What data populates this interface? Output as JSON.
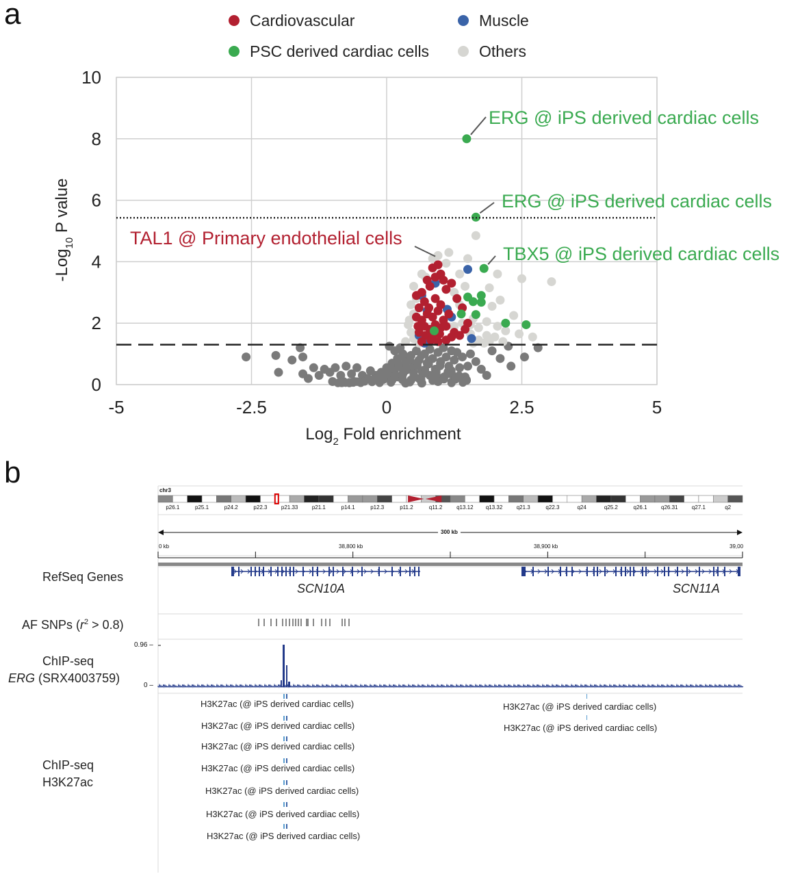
{
  "panels": {
    "a": "a",
    "b": "b"
  },
  "chart_data": {
    "type": "scatter",
    "title": "",
    "xlabel_main": "Log",
    "xlabel_sub": "2",
    "xlabel_rest": " Fold enrichment",
    "ylabel_main": "-Log",
    "ylabel_sub": "10",
    "ylabel_rest": " P value",
    "xlim": [
      -5,
      5
    ],
    "ylim": [
      0,
      10
    ],
    "xticks": [
      -5,
      -2.5,
      0,
      2.5,
      5
    ],
    "xtick_labels": [
      "-5",
      "-2.5",
      "0",
      "2.5",
      "5"
    ],
    "yticks": [
      0,
      2,
      4,
      6,
      8,
      10
    ],
    "ytick_labels": [
      "0",
      "2",
      "4",
      "6",
      "8",
      "10"
    ],
    "grid": true,
    "legend_position": "top",
    "thresholds": [
      {
        "style": "dotted",
        "y": 5.43
      },
      {
        "style": "dashed",
        "y": 1.3
      }
    ],
    "colors": {
      "Cardiovascular": "#b22030",
      "Muscle": "#3a63a8",
      "PSC derived cardiac cells": "#3aaa50",
      "Others": "#d6d6d2",
      "nonsig": "#7a7a7a"
    },
    "series": [
      {
        "name": "Cardiovascular",
        "color": "#b22030",
        "points": [
          [
            0.85,
            3.8
          ],
          [
            0.95,
            3.9
          ],
          [
            0.75,
            3.4
          ],
          [
            0.9,
            3.5
          ],
          [
            1.0,
            3.6
          ],
          [
            0.65,
            3.0
          ],
          [
            0.55,
            2.9
          ],
          [
            0.8,
            3.2
          ],
          [
            1.2,
            3.3
          ],
          [
            1.1,
            3.1
          ],
          [
            0.7,
            2.7
          ],
          [
            0.6,
            2.5
          ],
          [
            0.9,
            2.8
          ],
          [
            1.0,
            2.6
          ],
          [
            1.3,
            2.8
          ],
          [
            1.4,
            2.5
          ],
          [
            0.75,
            2.3
          ],
          [
            0.85,
            2.2
          ],
          [
            0.95,
            2.4
          ],
          [
            1.05,
            2.1
          ],
          [
            1.15,
            2.3
          ],
          [
            0.65,
            2.1
          ],
          [
            0.55,
            2.2
          ],
          [
            0.7,
            1.9
          ],
          [
            0.8,
            1.8
          ],
          [
            0.9,
            1.95
          ],
          [
            1.0,
            1.85
          ],
          [
            1.1,
            1.9
          ],
          [
            1.25,
            1.7
          ],
          [
            0.6,
            1.7
          ],
          [
            0.72,
            1.6
          ],
          [
            0.85,
            1.6
          ],
          [
            0.98,
            1.65
          ],
          [
            1.2,
            1.55
          ],
          [
            1.35,
            1.6
          ],
          [
            0.65,
            1.4
          ],
          [
            0.82,
            1.45
          ],
          [
            0.95,
            1.4
          ],
          [
            1.1,
            1.45
          ],
          [
            1.5,
            2.0
          ],
          [
            1.45,
            1.8
          ],
          [
            0.58,
            1.9
          ],
          [
            0.78,
            2.5
          ],
          [
            1.05,
            3.4
          ]
        ]
      },
      {
        "name": "Muscle",
        "color": "#3a63a8",
        "points": [
          [
            1.5,
            3.75
          ],
          [
            0.6,
            1.6
          ],
          [
            0.75,
            2.4
          ],
          [
            1.12,
            2.45
          ],
          [
            1.57,
            1.5
          ],
          [
            0.9,
            3.3
          ],
          [
            0.65,
            2.9
          ],
          [
            1.2,
            2.2
          ],
          [
            0.7,
            1.35
          ]
        ]
      },
      {
        "name": "PSC derived cardiac cells",
        "color": "#3aaa50",
        "points": [
          [
            1.48,
            8.0
          ],
          [
            1.65,
            5.45
          ],
          [
            1.8,
            3.78
          ],
          [
            1.5,
            2.85
          ],
          [
            1.75,
            2.9
          ],
          [
            1.6,
            2.7
          ],
          [
            1.75,
            2.68
          ],
          [
            1.65,
            2.28
          ],
          [
            1.38,
            2.3
          ],
          [
            2.2,
            2.0
          ],
          [
            2.58,
            1.95
          ],
          [
            0.88,
            1.75
          ]
        ]
      },
      {
        "name": "Others",
        "color": "#d6d6d2",
        "points": [
          [
            1.65,
            4.85
          ],
          [
            0.85,
            4.1
          ],
          [
            1.1,
            3.95
          ],
          [
            1.5,
            4.1
          ],
          [
            2.05,
            3.6
          ],
          [
            3.05,
            3.35
          ],
          [
            2.5,
            3.45
          ],
          [
            0.72,
            3.5
          ],
          [
            1.25,
            3.0
          ],
          [
            1.9,
            3.15
          ],
          [
            2.1,
            2.75
          ],
          [
            1.95,
            2.55
          ],
          [
            1.35,
            2.6
          ],
          [
            2.35,
            2.25
          ],
          [
            1.6,
            2.15
          ],
          [
            1.85,
            2.05
          ],
          [
            2.05,
            1.9
          ],
          [
            2.2,
            1.75
          ],
          [
            2.45,
            1.65
          ],
          [
            2.7,
            1.55
          ],
          [
            1.4,
            2.0
          ],
          [
            1.55,
            1.95
          ],
          [
            1.7,
            1.85
          ],
          [
            1.85,
            1.6
          ],
          [
            2.0,
            1.55
          ],
          [
            1.25,
            1.9
          ],
          [
            1.55,
            1.65
          ],
          [
            1.7,
            1.45
          ],
          [
            1.9,
            1.4
          ],
          [
            0.5,
            1.5
          ],
          [
            0.45,
            1.7
          ],
          [
            0.4,
            1.95
          ],
          [
            0.5,
            2.3
          ],
          [
            0.45,
            2.6
          ],
          [
            0.55,
            2.8
          ],
          [
            0.5,
            3.2
          ],
          [
            0.65,
            3.6
          ],
          [
            0.95,
            4.2
          ],
          [
            1.15,
            4.3
          ],
          [
            1.35,
            3.6
          ],
          [
            0.6,
            1.35
          ],
          [
            0.35,
            1.4
          ],
          [
            1.6,
            1.35
          ],
          [
            1.8,
            1.35
          ],
          [
            2.15,
            1.4
          ],
          [
            0.42,
            2.1
          ],
          [
            1.45,
            3.2
          ]
        ]
      }
    ],
    "nonsig_points": [
      [
        -2.6,
        0.9
      ],
      [
        -2.05,
        0.95
      ],
      [
        -2.0,
        0.4
      ],
      [
        -1.75,
        0.8
      ],
      [
        -1.6,
        1.2
      ],
      [
        -1.55,
        0.9
      ],
      [
        -1.55,
        0.35
      ],
      [
        -1.35,
        0.55
      ],
      [
        -1.25,
        0.3
      ],
      [
        -1.45,
        0.2
      ],
      [
        -1.15,
        0.5
      ],
      [
        -1.05,
        0.4
      ],
      [
        -0.95,
        0.55
      ],
      [
        -0.85,
        0.3
      ],
      [
        -0.75,
        0.6
      ],
      [
        -0.65,
        0.35
      ],
      [
        -0.55,
        0.55
      ],
      [
        -0.45,
        0.3
      ],
      [
        -0.35,
        0.2
      ],
      [
        -0.3,
        0.45
      ],
      [
        -0.2,
        0.3
      ],
      [
        -0.15,
        0.15
      ],
      [
        -0.1,
        0.4
      ],
      [
        -0.05,
        0.25
      ],
      [
        0.05,
        0.35
      ],
      [
        0.1,
        0.15
      ],
      [
        0.15,
        0.5
      ],
      [
        0.2,
        0.25
      ],
      [
        0.25,
        0.6
      ],
      [
        0.3,
        0.35
      ],
      [
        0.35,
        0.8
      ],
      [
        0.4,
        0.5
      ],
      [
        0.45,
        0.95
      ],
      [
        0.5,
        0.65
      ],
      [
        0.55,
        1.1
      ],
      [
        0.6,
        0.8
      ],
      [
        0.65,
        0.45
      ],
      [
        0.7,
        1.0
      ],
      [
        0.75,
        0.7
      ],
      [
        0.8,
        1.15
      ],
      [
        0.85,
        0.85
      ],
      [
        0.9,
        0.5
      ],
      [
        0.95,
        1.05
      ],
      [
        1.0,
        0.75
      ],
      [
        1.05,
        1.2
      ],
      [
        1.1,
        0.9
      ],
      [
        1.15,
        0.6
      ],
      [
        1.2,
        1.1
      ],
      [
        1.25,
        0.8
      ],
      [
        1.3,
        1.05
      ],
      [
        1.35,
        0.55
      ],
      [
        1.4,
        0.9
      ],
      [
        1.5,
        0.6
      ],
      [
        1.55,
        1.0
      ],
      [
        1.65,
        0.75
      ],
      [
        1.75,
        0.5
      ],
      [
        1.85,
        0.3
      ],
      [
        1.95,
        1.1
      ],
      [
        2.1,
        0.85
      ],
      [
        2.3,
        0.6
      ],
      [
        2.55,
        0.9
      ],
      [
        2.8,
        1.2
      ],
      [
        2.25,
        1.25
      ],
      [
        0.3,
        1.0
      ],
      [
        0.2,
        0.85
      ],
      [
        0.1,
        0.7
      ],
      [
        0.0,
        0.55
      ],
      [
        -0.1,
        0.15
      ],
      [
        0.45,
        0.15
      ],
      [
        0.6,
        0.2
      ],
      [
        0.8,
        0.3
      ],
      [
        1.0,
        0.2
      ],
      [
        1.2,
        0.35
      ],
      [
        1.45,
        0.25
      ],
      [
        -0.6,
        0.1
      ],
      [
        -0.8,
        0.1
      ],
      [
        -1.0,
        0.1
      ],
      [
        0.35,
        0.05
      ],
      [
        0.65,
        0.05
      ],
      [
        0.95,
        0.1
      ],
      [
        0.15,
        1.1
      ],
      [
        0.05,
        1.25
      ],
      [
        0.25,
        1.2
      ]
    ],
    "annotations": [
      {
        "text": "ERG  @ iPS derived cardiac cells",
        "color": "#3aaa50",
        "x": 1.48,
        "y": 8.0
      },
      {
        "text": "ERG  @ iPS derived cardiac cells",
        "color": "#3aaa50",
        "x": 1.65,
        "y": 5.45
      },
      {
        "text": "TBX5  @ iPS derived cardiac cells",
        "color": "#3aaa50",
        "x": 1.8,
        "y": 3.78
      },
      {
        "text": "TAL1  @ Primary endothelial cells",
        "color": "#b22030",
        "x": 0.9,
        "y": 3.95
      }
    ]
  },
  "igv": {
    "chrom": "chr3",
    "bands": [
      "p26.1",
      "p25.1",
      "p24.2",
      "p22.3",
      "p21.33",
      "p21.1",
      "p14.1",
      "p12.3",
      "p11.2",
      "q11.2",
      "q13.12",
      "q13.32",
      "q21.3",
      "q22.3",
      "q24",
      "q25.2",
      "q26.1",
      "q26.31",
      "q27.1",
      "q2"
    ],
    "span_label": "300 kb",
    "coord_labels": [
      "0 kb",
      "38,800 kb",
      "38,900 kb",
      "39,00"
    ],
    "tracks": {
      "refseq": "RefSeq Genes",
      "gene1": "SCN10A",
      "gene2": "SCN11A",
      "snps_prefix": "AF SNPs (",
      "snps_r": "r",
      "snps_sup": "2",
      "snps_suffix": " > 0.8)",
      "chip_erg_line1": "ChIP-seq",
      "chip_erg_gene": "ERG",
      "chip_erg_id": " (SRX4003759)",
      "chip_h3_line1": "ChIP-seq",
      "chip_h3_line2": "H3K27ac"
    },
    "signal_max": "0.96 –",
    "signal_min": "0 –",
    "bed_features": [
      "H3K27ac (@ iPS derived cardiac cells)",
      "H3K27ac (@ iPS derived cardiac cells)",
      "H3K27ac (@ iPS derived cardiac cells)",
      "H3K27ac (@ iPS derived cardiac cells)",
      "H3K27ac (@ iPS derived cardiac cells)",
      "H3K27ac (@ iPS derived cardiac cells)",
      "H3K27ac (@ iPS derived cardiac cells)"
    ],
    "bed_features_right": [
      "H3K27ac (@ iPS derived cardiac cells)",
      "H3K27ac (@ iPS derived cardiac cells)"
    ]
  }
}
